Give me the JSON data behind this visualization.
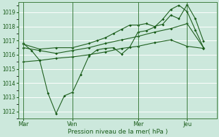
{
  "xlabel": "Pression niveau de la mer( hPa )",
  "bg_color": "#cce8dc",
  "grid_color": "#b0d8c8",
  "line_color": "#1a5c1a",
  "ylim": [
    1011.5,
    1019.7
  ],
  "yticks": [
    1012,
    1013,
    1014,
    1015,
    1016,
    1017,
    1018,
    1019
  ],
  "day_labels": [
    "Mar",
    "Ven",
    "Mer",
    "Jeu"
  ],
  "day_positions": [
    0,
    3,
    7,
    10
  ],
  "xlim": [
    -0.3,
    11.8
  ],
  "line1_x": [
    0,
    0.5,
    1.0,
    1.5,
    2.0,
    2.5,
    3.0,
    3.5,
    4.0,
    4.5,
    5.0,
    5.5,
    6.0,
    6.5,
    7.0,
    7.5,
    8.0,
    8.5,
    9.0,
    9.5,
    10.0,
    10.5,
    11.0
  ],
  "line1_y": [
    1016.8,
    1016.3,
    1015.6,
    1013.3,
    1011.85,
    1013.1,
    1013.35,
    1014.6,
    1015.9,
    1016.35,
    1016.45,
    1016.5,
    1016.05,
    1016.55,
    1017.6,
    1017.7,
    1017.95,
    1018.5,
    1019.2,
    1019.5,
    1019.05,
    1017.75,
    1016.5
  ],
  "line2_x": [
    0,
    1.0,
    2.0,
    3.0,
    4.0,
    4.5,
    5.0,
    5.5,
    6.0,
    6.5,
    7.0,
    7.5,
    8.0,
    8.5,
    9.0,
    9.5,
    10.0,
    10.5,
    11.0
  ],
  "line2_y": [
    1016.75,
    1016.4,
    1016.5,
    1016.5,
    1016.8,
    1017.0,
    1017.2,
    1017.5,
    1017.8,
    1018.1,
    1018.1,
    1018.2,
    1018.0,
    1018.15,
    1018.8,
    1018.55,
    1019.55,
    1018.55,
    1016.95
  ],
  "line3_x": [
    0,
    1,
    2,
    3,
    4,
    5,
    6,
    7,
    8,
    9,
    10,
    11
  ],
  "line3_y": [
    1015.5,
    1015.6,
    1015.75,
    1015.85,
    1016.0,
    1016.2,
    1016.45,
    1016.6,
    1016.85,
    1017.05,
    1016.6,
    1016.45
  ],
  "line4_x": [
    0,
    1,
    2,
    3,
    4,
    5,
    6,
    7,
    8,
    9,
    10,
    11
  ],
  "line4_y": [
    1016.5,
    1016.3,
    1016.1,
    1016.3,
    1016.5,
    1016.8,
    1017.05,
    1017.3,
    1017.6,
    1017.85,
    1018.2,
    1016.5
  ]
}
